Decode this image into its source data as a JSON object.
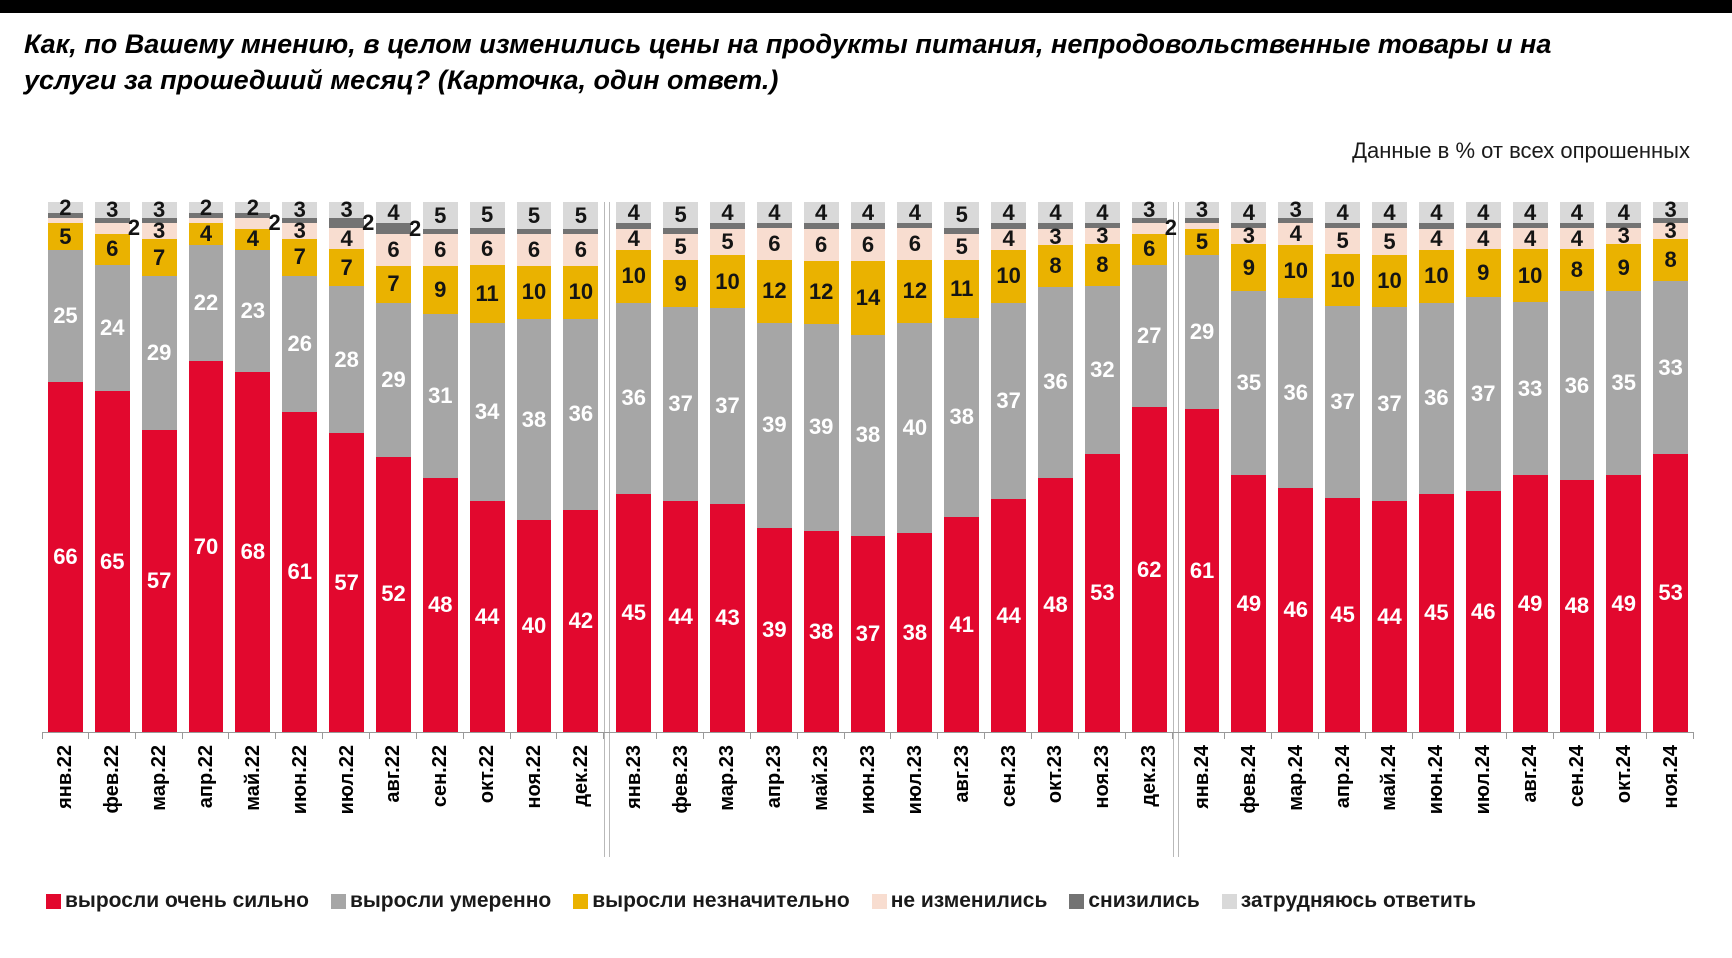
{
  "header": {
    "title": "Как, по Вашему мнению, в целом изменились цены на продукты питания, непродовольственные товары и на услуги за прошедший месяц? (Карточка, один ответ.)",
    "subtitle": "Данные в % от всех опрошенных"
  },
  "chart_data": {
    "type": "bar",
    "stacked": true,
    "units": "%",
    "ylim": [
      0,
      100
    ],
    "year_separator_after": [
      11,
      23
    ],
    "categories": [
      "янв.22",
      "фев.22",
      "мар.22",
      "апр.22",
      "май.22",
      "июн.22",
      "июл.22",
      "авг.22",
      "сен.22",
      "окт.22",
      "ноя.22",
      "дек.22",
      "янв.23",
      "фев.23",
      "мар.23",
      "апр.23",
      "май.23",
      "июн.23",
      "июл.23",
      "авг.23",
      "сен.23",
      "окт.23",
      "ноя.23",
      "дек.23",
      "янв.24",
      "фев.24",
      "мар.24",
      "апр.24",
      "май.24",
      "июн.24",
      "июл.24",
      "авг.24",
      "сен.24",
      "окт.24",
      "ноя.24"
    ],
    "series": [
      {
        "name": "выросли очень сильно",
        "color": "#e2082e",
        "text_color": "#ffffff",
        "values": [
          66,
          65,
          57,
          70,
          68,
          61,
          57,
          52,
          48,
          44,
          40,
          42,
          45,
          44,
          43,
          39,
          38,
          37,
          38,
          41,
          44,
          48,
          53,
          62,
          61,
          49,
          46,
          45,
          44,
          45,
          46,
          49,
          48,
          49,
          53
        ]
      },
      {
        "name": "выросли умеренно",
        "color": "#a6a6a6",
        "text_color": "#ffffff",
        "values": [
          25,
          24,
          29,
          22,
          23,
          26,
          28,
          29,
          31,
          34,
          38,
          36,
          36,
          37,
          37,
          39,
          39,
          38,
          40,
          38,
          37,
          36,
          32,
          27,
          29,
          35,
          36,
          37,
          37,
          36,
          37,
          33,
          36,
          35,
          33
        ]
      },
      {
        "name": "выросли незначительно",
        "color": "#eab200",
        "text_color": "#141414",
        "values": [
          5,
          6,
          7,
          4,
          4,
          7,
          7,
          7,
          9,
          11,
          10,
          10,
          10,
          9,
          10,
          12,
          12,
          14,
          12,
          11,
          10,
          8,
          8,
          6,
          5,
          9,
          10,
          10,
          10,
          10,
          9,
          10,
          8,
          9,
          8
        ]
      },
      {
        "name": "не изменились",
        "color": "#f8ddd0",
        "text_color": "#141414",
        "values": [
          1,
          2,
          3,
          1,
          2,
          3,
          4,
          6,
          6,
          6,
          6,
          6,
          4,
          5,
          5,
          6,
          6,
          6,
          6,
          5,
          4,
          3,
          3,
          2,
          1,
          3,
          4,
          5,
          5,
          4,
          4,
          4,
          4,
          3,
          3
        ],
        "hidden_label_indices": [
          0,
          3,
          24
        ],
        "offset_label_indices": [
          1,
          4,
          23
        ]
      },
      {
        "name": "снизились",
        "color": "#737373",
        "text_color": "#141414",
        "values": [
          1,
          1,
          1,
          1,
          1,
          1,
          2,
          2,
          1,
          1,
          1,
          1,
          1,
          1,
          1,
          1,
          1,
          1,
          1,
          1,
          1,
          1,
          1,
          1,
          1,
          1,
          1,
          1,
          1,
          1,
          1,
          1,
          1,
          1,
          1
        ],
        "shown_label_indices": [
          6,
          7
        ],
        "offset_label_indices": [
          6,
          7
        ]
      },
      {
        "name": "затрудняюсь ответить",
        "color": "#d9d9d9",
        "text_color": "#141414",
        "values": [
          2,
          3,
          3,
          2,
          2,
          3,
          3,
          4,
          5,
          5,
          5,
          5,
          4,
          5,
          4,
          4,
          4,
          4,
          4,
          5,
          4,
          4,
          4,
          3,
          3,
          4,
          3,
          4,
          4,
          4,
          4,
          4,
          4,
          4,
          3
        ]
      }
    ]
  }
}
